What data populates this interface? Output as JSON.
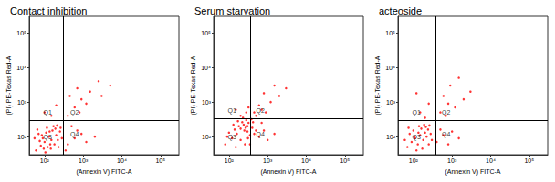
{
  "chart_data": [
    {
      "type": "scatter",
      "title": "Contact inhibition",
      "x_label": "(Annexin V) FITC-A",
      "y_label": "(PI) PE-Texas Red-A",
      "log": true,
      "color": "#ff0000",
      "marker": "circle",
      "xlim": [
        40,
        300000
      ],
      "ylim": [
        30,
        300000
      ],
      "xticks": [
        {
          "value": 100,
          "label": "10²"
        },
        {
          "value": 1000,
          "label": "10³"
        },
        {
          "value": 10000,
          "label": "10⁴"
        },
        {
          "value": 100000,
          "label": "10⁵"
        }
      ],
      "yticks": [
        {
          "value": 100,
          "label": "10²"
        },
        {
          "value": 1000,
          "label": "10³"
        },
        {
          "value": 10000,
          "label": "10⁴"
        },
        {
          "value": 100000,
          "label": "10⁵"
        }
      ],
      "gate": {
        "x": 300,
        "y": 300
      },
      "annotations": [
        {
          "text": "Q1",
          "x": 120,
          "y": 500
        },
        {
          "text": "Q2",
          "x": 600,
          "y": 500
        },
        {
          "text": "Q3",
          "x": 120,
          "y": 100
        },
        {
          "text": "Q4",
          "x": 600,
          "y": 120
        }
      ],
      "x": [
        60,
        80,
        100,
        120,
        90,
        150,
        70,
        110,
        130,
        180,
        200,
        160,
        95,
        140,
        220,
        75,
        250,
        115,
        170,
        65,
        230,
        190,
        105,
        135,
        85,
        210,
        280,
        55,
        145,
        260,
        400,
        600,
        900,
        500,
        1200,
        700,
        2000,
        350,
        400,
        600,
        900,
        1500,
        3000,
        2500,
        800,
        1200,
        5000,
        450,
        700,
        150,
        200,
        100
      ],
      "values": [
        40,
        55,
        70,
        50,
        90,
        80,
        120,
        130,
        100,
        60,
        110,
        150,
        45,
        60,
        80,
        75,
        140,
        180,
        200,
        160,
        50,
        170,
        35,
        140,
        110,
        210,
        90,
        90,
        45,
        180,
        60,
        90,
        120,
        200,
        70,
        150,
        100,
        40,
        400,
        700,
        1200,
        2000,
        1500,
        4000,
        500,
        900,
        3000,
        1500,
        2500,
        400,
        800,
        500
      ]
    },
    {
      "type": "scatter",
      "title": "Serum starvation",
      "x_label": "(Annexin V) FITC-A",
      "y_label": "(PI) PE-Texas Red-A",
      "log": true,
      "color": "#ff0000",
      "marker": "circle",
      "xlim": [
        40,
        300000
      ],
      "ylim": [
        30,
        300000
      ],
      "xticks": [
        {
          "value": 100,
          "label": "10²"
        },
        {
          "value": 1000,
          "label": "10³"
        },
        {
          "value": 10000,
          "label": "10⁴"
        },
        {
          "value": 100000,
          "label": "10⁵"
        }
      ],
      "yticks": [
        {
          "value": 100,
          "label": "10²"
        },
        {
          "value": 1000,
          "label": "10³"
        },
        {
          "value": 10000,
          "label": "10⁴"
        },
        {
          "value": 100000,
          "label": "10⁵"
        }
      ],
      "gate": {
        "x": 350,
        "y": 330
      },
      "annotations": [
        {
          "text": "Q1",
          "x": 120,
          "y": 550
        },
        {
          "text": "Q2",
          "x": 650,
          "y": 550
        },
        {
          "text": "Q3",
          "x": 120,
          "y": 100
        },
        {
          "text": "Q4",
          "x": 650,
          "y": 120
        }
      ],
      "x": [
        80,
        120,
        160,
        200,
        250,
        300,
        350,
        180,
        220,
        280,
        140,
        100,
        320,
        400,
        450,
        380,
        260,
        150,
        200,
        240,
        300,
        90,
        130,
        350,
        420,
        500,
        170,
        230,
        310,
        270,
        600,
        800,
        1000,
        700,
        1500,
        500,
        700,
        900,
        1200,
        600,
        2000,
        800,
        450,
        1500,
        3000,
        200,
        280,
        150,
        320
      ],
      "values": [
        60,
        90,
        120,
        80,
        150,
        200,
        110,
        200,
        260,
        300,
        160,
        130,
        250,
        180,
        120,
        320,
        60,
        50,
        170,
        220,
        140,
        100,
        220,
        60,
        260,
        150,
        280,
        350,
        90,
        180,
        100,
        150,
        80,
        250,
        120,
        400,
        600,
        500,
        1000,
        800,
        1500,
        1800,
        500,
        3000,
        2500,
        400,
        500,
        600,
        700
      ]
    },
    {
      "type": "scatter",
      "title": "acteoside",
      "x_label": "(Annexin V) FITC-A",
      "y_label": "(PI) PE-Texas Red-A",
      "log": true,
      "color": "#ff0000",
      "marker": "circle",
      "xlim": [
        40,
        300000
      ],
      "ylim": [
        30,
        300000
      ],
      "xticks": [
        {
          "value": 100,
          "label": "10²"
        },
        {
          "value": 1000,
          "label": "10³"
        },
        {
          "value": 10000,
          "label": "10⁴"
        },
        {
          "value": 100000,
          "label": "10⁵"
        }
      ],
      "yticks": [
        {
          "value": 100,
          "label": "10²"
        },
        {
          "value": 1000,
          "label": "10³"
        },
        {
          "value": 10000,
          "label": "10⁴"
        },
        {
          "value": 100000,
          "label": "10⁵"
        }
      ],
      "gate": {
        "x": 380,
        "y": 300
      },
      "annotations": [
        {
          "text": "Q1",
          "x": 120,
          "y": 500
        },
        {
          "text": "Q2",
          "x": 700,
          "y": 500
        },
        {
          "text": "Q3",
          "x": 120,
          "y": 100
        },
        {
          "text": "Q4",
          "x": 700,
          "y": 120
        }
      ],
      "x": [
        70,
        90,
        110,
        130,
        150,
        180,
        200,
        100,
        120,
        160,
        220,
        250,
        80,
        140,
        190,
        240,
        280,
        60,
        170,
        210,
        300,
        105,
        135,
        260,
        75,
        400,
        600,
        800,
        500,
        1000,
        1500,
        500,
        800,
        1200,
        600,
        2000,
        900,
        3000,
        1500,
        700,
        150,
        250,
        120,
        200
      ],
      "values": [
        50,
        70,
        90,
        60,
        110,
        80,
        130,
        150,
        40,
        170,
        100,
        60,
        120,
        200,
        220,
        160,
        120,
        80,
        45,
        190,
        80,
        100,
        130,
        210,
        180,
        70,
        110,
        60,
        160,
        140,
        90,
        500,
        900,
        700,
        1500,
        1200,
        3000,
        2000,
        5000,
        400,
        500,
        900,
        1800,
        350
      ]
    }
  ]
}
